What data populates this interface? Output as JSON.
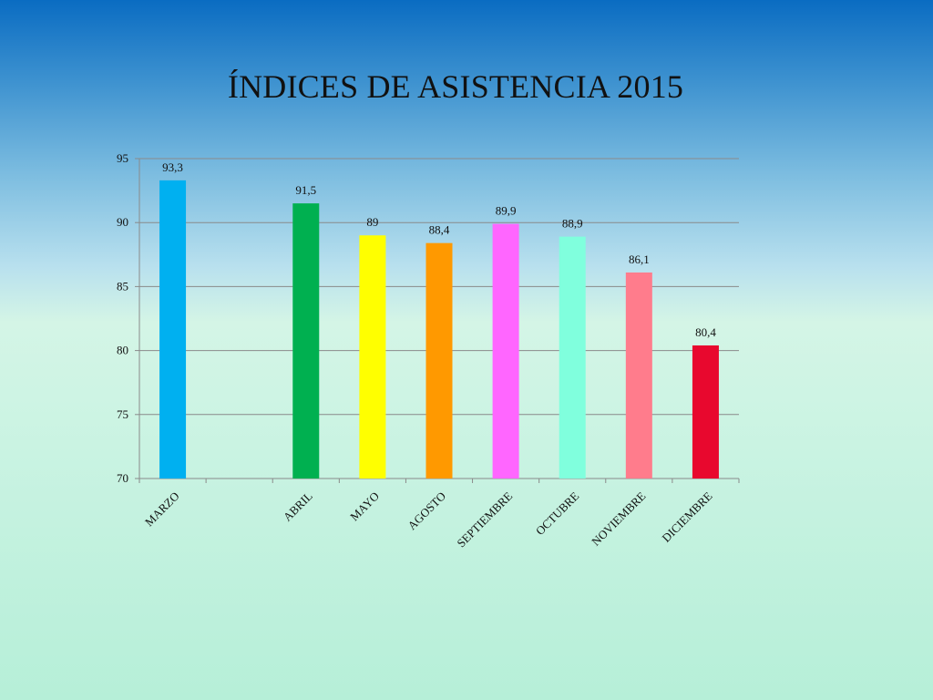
{
  "slide": {
    "title": "ÍNDICES DE ASISTENCIA 2015"
  },
  "chart_data": {
    "type": "bar",
    "title": "ÍNDICES DE ASISTENCIA 2015",
    "xlabel": "",
    "ylabel": "",
    "ylim": [
      70,
      95
    ],
    "yticks": [
      70,
      75,
      80,
      85,
      90,
      95
    ],
    "grid": true,
    "legend": "none",
    "categories": [
      "MARZO",
      "",
      "ABRIL",
      "MAYO",
      "AGOSTO",
      "SEPTIEMBRE",
      "OCTUBRE",
      "NOVIEMBRE",
      "DICIEMBRE"
    ],
    "values": [
      93.3,
      null,
      91.5,
      89,
      88.4,
      89.9,
      88.9,
      86.1,
      80.4
    ],
    "data_labels": [
      "93,3",
      "",
      "91,5",
      "89",
      "88,4",
      "89,9",
      "88,9",
      "86,1",
      "80,4"
    ],
    "colors": [
      "#00b0f0",
      "",
      "#00b050",
      "#ffff00",
      "#ff9900",
      "#ff66ff",
      "#80ffdd",
      "#ff7c8c",
      "#e8082e"
    ]
  }
}
